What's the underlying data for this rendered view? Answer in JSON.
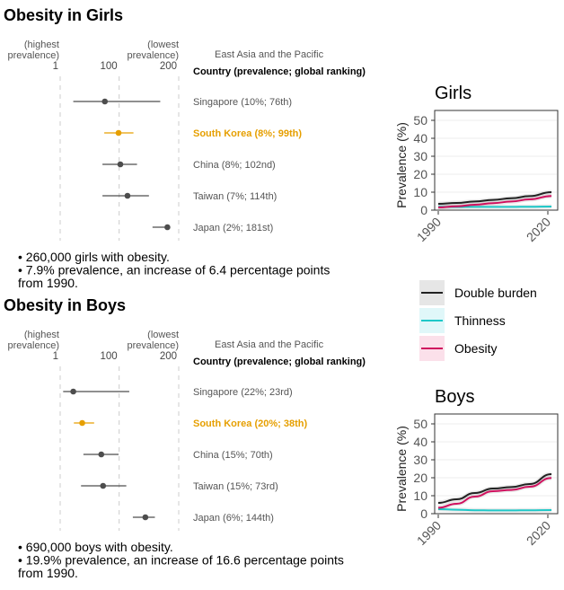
{
  "colors": {
    "highlight": "#e69f00",
    "default": "#4d4d4d",
    "double_burden": "#222222",
    "thinness": "#1ec8c8",
    "obesity": "#d0105e"
  },
  "chart_data": [
    {
      "type": "forest",
      "title": "Obesity in Girls",
      "axis_labels": {
        "left": [
          "(highest",
          "prevalence)"
        ],
        "right": [
          "(lowest",
          "prevalence)"
        ]
      },
      "xticks": [
        1,
        100,
        200
      ],
      "xlim": [
        1,
        200
      ],
      "region": "East Asia and the Pacific",
      "column_header": "Country (prevalence; global ranking)",
      "rows": [
        {
          "label": "Singapore (10%; 76th)",
          "rank": 76,
          "low": 23,
          "high": 169,
          "highlight": false
        },
        {
          "label": "South Korea (8%; 99th)",
          "rank": 99,
          "low": 75,
          "high": 124,
          "highlight": true
        },
        {
          "label": "China (8%; 102nd)",
          "rank": 102,
          "low": 72,
          "high": 130,
          "highlight": false
        },
        {
          "label": "Taiwan (7%; 114th)",
          "rank": 114,
          "low": 72,
          "high": 150,
          "highlight": false
        },
        {
          "label": "Japan (2%; 181st)",
          "rank": 181,
          "low": 156,
          "high": 181,
          "highlight": false
        }
      ],
      "notes": [
        "• 260,000 girls with obesity.",
        "• 7.9% prevalence, an increase of 6.4 percentage points",
        "   from 1990."
      ]
    },
    {
      "type": "forest",
      "title": "Obesity in Boys",
      "axis_labels": {
        "left": [
          "(highest",
          "prevalence)"
        ],
        "right": [
          "(lowest",
          "prevalence)"
        ]
      },
      "xticks": [
        1,
        100,
        200
      ],
      "xlim": [
        1,
        200
      ],
      "region": "East Asia and the Pacific",
      "column_header": "Country (prevalence; global ranking)",
      "rows": [
        {
          "label": "Singapore (22%; 23rd)",
          "rank": 23,
          "low": 6,
          "high": 117,
          "highlight": false
        },
        {
          "label": "South Korea (20%; 38th)",
          "rank": 38,
          "low": 24,
          "high": 58,
          "highlight": true
        },
        {
          "label": "China (15%; 70th)",
          "rank": 70,
          "low": 40,
          "high": 99,
          "highlight": false
        },
        {
          "label": "Taiwan (15%; 73rd)",
          "rank": 73,
          "low": 36,
          "high": 112,
          "highlight": false
        },
        {
          "label": "Japan (6%; 144th)",
          "rank": 144,
          "low": 123,
          "high": 160,
          "highlight": false
        }
      ],
      "notes": [
        "• 690,000 boys with obesity.",
        "• 19.9% prevalence, an increase of 16.6 percentage points",
        "   from 1990."
      ]
    },
    {
      "type": "line",
      "title": "Girls",
      "ylabel": "Prevalence (%)",
      "xticks": [
        1990,
        2020
      ],
      "yticks": [
        0,
        10,
        20,
        30,
        40,
        50
      ],
      "ylim": [
        0,
        55
      ],
      "grid": true,
      "x": [
        1990,
        1995,
        2000,
        2005,
        2010,
        2015,
        2021
      ],
      "series": [
        {
          "name": "Double burden",
          "key": "double_burden",
          "values": [
            3.5,
            4.0,
            4.8,
            5.7,
            6.6,
            7.8,
            10.0
          ]
        },
        {
          "name": "Thinness",
          "key": "thinness",
          "values": [
            1.8,
            1.8,
            1.8,
            1.8,
            1.8,
            1.9,
            2.0
          ]
        },
        {
          "name": "Obesity",
          "key": "obesity",
          "values": [
            1.5,
            2.1,
            3.0,
            3.9,
            4.8,
            6.0,
            7.9
          ]
        }
      ]
    },
    {
      "type": "line",
      "title": "Boys",
      "ylabel": "Prevalence (%)",
      "xticks": [
        1990,
        2020
      ],
      "yticks": [
        0,
        10,
        20,
        30,
        40,
        50
      ],
      "ylim": [
        0,
        55
      ],
      "grid": true,
      "x": [
        1990,
        1995,
        2000,
        2005,
        2010,
        2015,
        2021
      ],
      "series": [
        {
          "name": "Double burden",
          "key": "double_burden",
          "values": [
            6.0,
            8.0,
            11.5,
            14.0,
            14.8,
            16.5,
            22.0
          ]
        },
        {
          "name": "Thinness",
          "key": "thinness",
          "values": [
            2.5,
            2.2,
            1.9,
            1.8,
            1.8,
            1.9,
            2.0
          ]
        },
        {
          "name": "Obesity",
          "key": "obesity",
          "values": [
            3.3,
            5.5,
            9.5,
            12.5,
            13.2,
            15.0,
            19.9
          ]
        }
      ]
    }
  ],
  "legend": [
    {
      "label": "Double burden",
      "key": "double_burden",
      "fill": "#e6e6e6"
    },
    {
      "label": "Thinness",
      "key": "thinness",
      "fill": "#e0f7f9"
    },
    {
      "label": "Obesity",
      "key": "obesity",
      "fill": "#fbe0ea"
    }
  ]
}
